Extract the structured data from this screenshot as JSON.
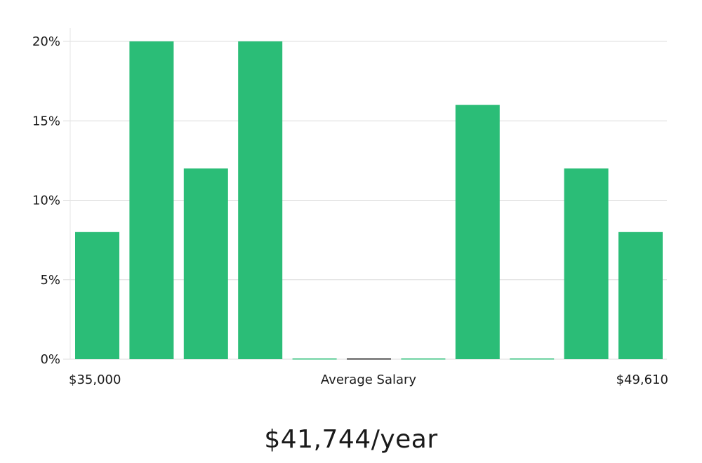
{
  "chart_data": {
    "type": "bar",
    "values": [
      8,
      20,
      12,
      20,
      0,
      0,
      0,
      16,
      0,
      12,
      8
    ],
    "y_unit": "%",
    "ylim": [
      0,
      20
    ],
    "y_ticks": [
      "0%",
      "5%",
      "10%",
      "15%",
      "20%"
    ],
    "y_tick_values": [
      0,
      5,
      10,
      15,
      20
    ],
    "x_labels": {
      "min": "$35,000",
      "center": "Average Salary",
      "max": "$49,610"
    },
    "grid": true,
    "bar_color": "#2bbd77",
    "highlight_index": 5,
    "highlight_color": "#1a1a1a"
  },
  "headline": "$41,744/year"
}
